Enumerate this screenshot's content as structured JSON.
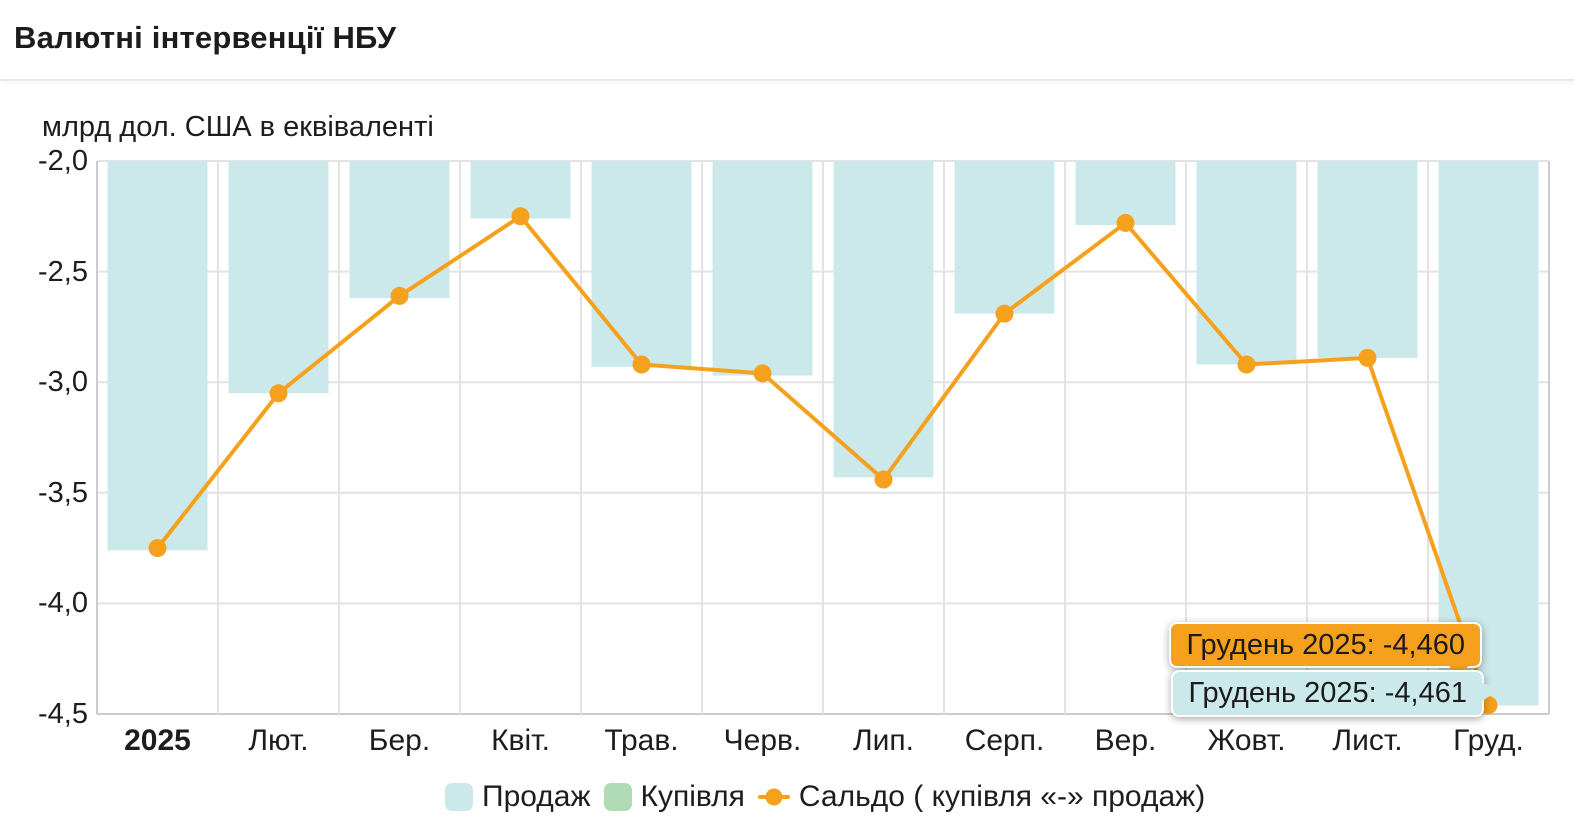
{
  "header": {
    "title": "Валютні інтервенції НБУ"
  },
  "chart_data": {
    "type": "bar+line",
    "title": "Валютні інтервенції НБУ",
    "ylabel": "млрд дол. США в еквіваленті",
    "categories": [
      "2025",
      "Лют.",
      "Бер.",
      "Квіт.",
      "Трав.",
      "Черв.",
      "Лип.",
      "Серп.",
      "Вер.",
      "Жовт.",
      "Лист.",
      "Груд."
    ],
    "first_category_bold": true,
    "ylim": [
      -4.5,
      -2.0
    ],
    "ytick_step": 0.5,
    "ytick_labels": [
      "-2,0",
      "-2,5",
      "-3,0",
      "-3,5",
      "-4,0",
      "-4,5"
    ],
    "grid": true,
    "legend_position": "bottom",
    "series": [
      {
        "name": "Продаж",
        "type": "bar",
        "color": "#cbe8ea",
        "values": [
          -3.76,
          -3.05,
          -2.62,
          -2.26,
          -2.93,
          -2.97,
          -3.43,
          -2.69,
          -2.29,
          -2.92,
          -2.89,
          -4.461
        ]
      },
      {
        "name": "Купівля",
        "type": "bar",
        "color": "#b1dbb4",
        "values": [
          0,
          0,
          0,
          0,
          0,
          0,
          0,
          0,
          0,
          0,
          0,
          0
        ]
      },
      {
        "name": "Сальдо ( купівля «-» продаж)",
        "type": "line",
        "color": "#f5a11d",
        "values": [
          -3.75,
          -3.05,
          -2.61,
          -2.25,
          -2.92,
          -2.96,
          -3.44,
          -2.69,
          -2.28,
          -2.92,
          -2.89,
          -4.46
        ]
      }
    ]
  },
  "tooltips": [
    {
      "series": "Сальдо ( купівля «-» продаж)",
      "text": "Грудень 2025: -4,460",
      "bg": "#f5a11d"
    },
    {
      "series": "Продаж",
      "text": "Грудень 2025: -4,461",
      "bg": "#cbe8ea"
    }
  ],
  "colors": {
    "grid": "#e3e3e3",
    "axis": "#cccccc",
    "text": "#1d1d1d",
    "background": "#ffffff"
  }
}
